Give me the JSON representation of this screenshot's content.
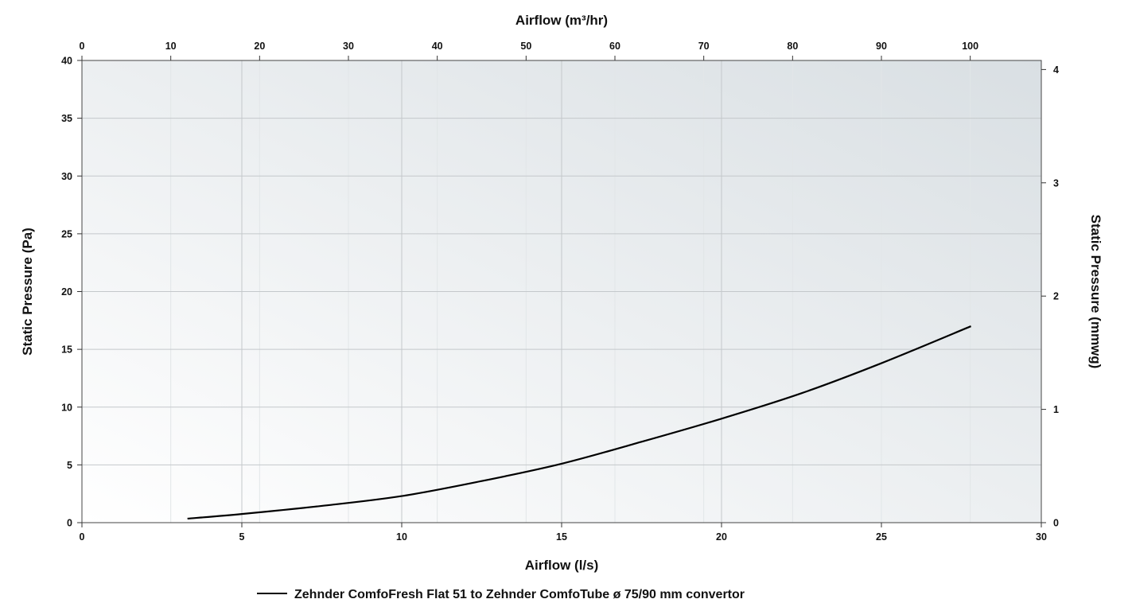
{
  "chart_data": {
    "type": "line",
    "title": "",
    "xlabel": "Airflow (l/s)",
    "x2label": "Airflow (m³/hr)",
    "ylabel": "Static Pressure (Pa)",
    "y2label": "Static Pressure (mmwg)",
    "xlim": [
      0,
      30
    ],
    "x2lim": [
      0,
      108
    ],
    "ylim": [
      0,
      40
    ],
    "y2lim": [
      0,
      4.08
    ],
    "x_ticks": [
      0,
      5,
      10,
      15,
      20,
      25,
      30
    ],
    "x2_ticks": [
      0,
      10,
      20,
      30,
      40,
      50,
      60,
      70,
      80,
      90,
      100
    ],
    "y_ticks": [
      0,
      5,
      10,
      15,
      20,
      25,
      30,
      35,
      40
    ],
    "y2_ticks": [
      0,
      1,
      2,
      3,
      4
    ],
    "grid": true,
    "legend_position": "bottom-center",
    "series": [
      {
        "name": "Zehnder ComfoFresh Flat 51 to Zehnder ComfoTube ø 75/90 mm convertor",
        "color": "#000000",
        "x": [
          3.3,
          5,
          7.5,
          10,
          12.5,
          15,
          17.5,
          20,
          22.5,
          25,
          27.8
        ],
        "y": [
          0.35,
          0.75,
          1.45,
          2.3,
          3.6,
          5.1,
          7.0,
          9.0,
          11.2,
          13.8,
          17.0
        ]
      }
    ]
  }
}
